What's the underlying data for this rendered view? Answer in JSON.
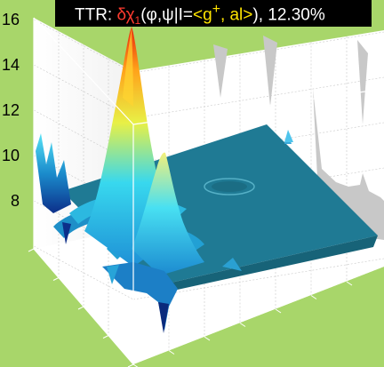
{
  "title": {
    "prefix": "TTR: ",
    "symbol": "δχ",
    "subscript": "1",
    "args": "(φ,ψ|I=",
    "braket": "<g",
    "braket_sup": "+",
    "braket_end": ", al>",
    "suffix": "), 12.30%"
  },
  "chart_data": {
    "type": "surface",
    "z_axis": {
      "ticks": [
        "16",
        "14",
        "12",
        "10",
        "8"
      ]
    },
    "grid": true,
    "colormap": "jet",
    "colors": {
      "background": "#a8d66a",
      "plane": "#1f7a94",
      "projection": "#c8c8c8",
      "box": "#ffffff"
    }
  }
}
